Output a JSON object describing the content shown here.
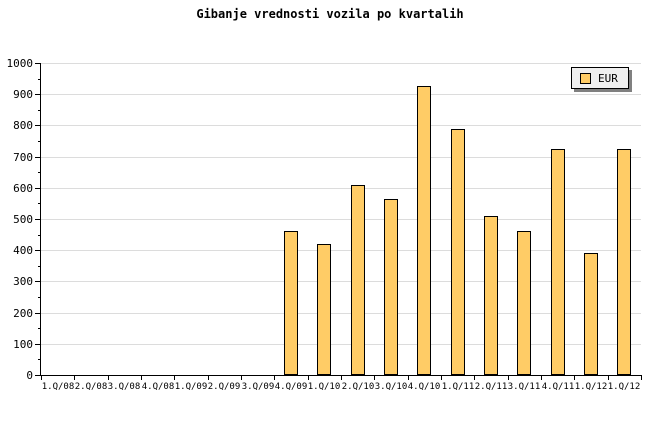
{
  "chart_data": {
    "type": "bar",
    "title": "Gibanje vrednosti vozila po kvartalih",
    "xlabel": "",
    "ylabel": "",
    "categories": [
      "1.Q/08",
      "2.Q/08",
      "3.Q/08",
      "4.Q/08",
      "1.Q/09",
      "2.Q/09",
      "3.Q/09",
      "4.Q/09",
      "1.Q/10",
      "2.Q/10",
      "3.Q/10",
      "4.Q/10",
      "1.Q/11",
      "2.Q/11",
      "3.Q/11",
      "4.Q/11",
      "1.Q/12",
      "1.Q/12"
    ],
    "series": [
      {
        "name": "EUR",
        "values": [
          null,
          null,
          null,
          null,
          null,
          null,
          null,
          460,
          420,
          610,
          565,
          925,
          790,
          510,
          460,
          725,
          390,
          725
        ]
      }
    ],
    "ylim": [
      0,
      1000
    ],
    "ytick_interval": 100,
    "yminor_tick_interval": 50,
    "grid": "horizontal",
    "legend": {
      "label": "EUR",
      "position": "top-right"
    },
    "colors": {
      "bar_fill": "#FFCC66",
      "bar_border": "#000000",
      "grid": "#DCDCDC",
      "axis": "#000000",
      "background": "#FFFFFF",
      "legend_bg": "#EFEFEF",
      "legend_shadow": "#808080",
      "text": "#000000"
    }
  }
}
